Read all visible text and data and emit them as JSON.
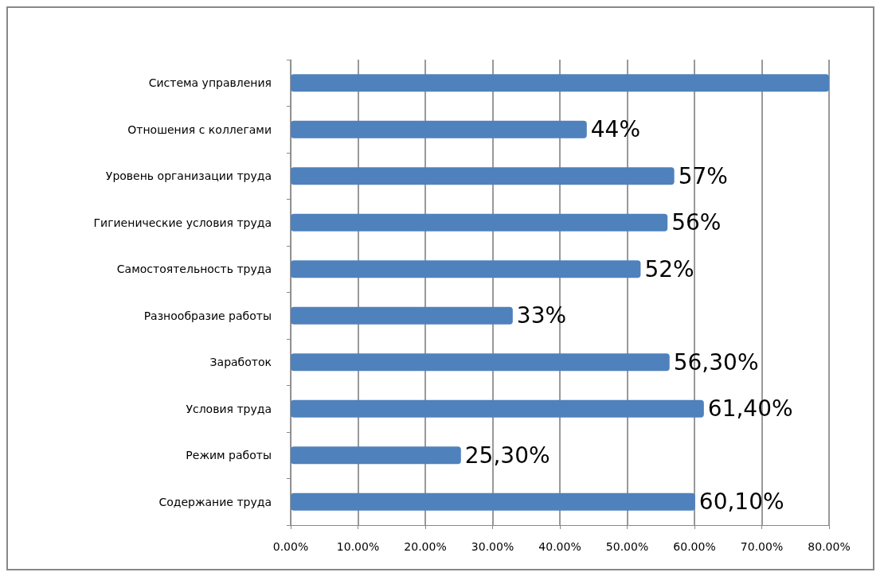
{
  "chart_data": {
    "type": "bar",
    "orientation": "horizontal",
    "categories": [
      "Система управления",
      "Отношения с коллегами",
      "Уровень организации труда",
      "Гигиенические условия труда",
      "Самостоятельность труда",
      "Разнообразие работы",
      "Заработок",
      "Условия труда",
      "Режим работы",
      "Содержание труда"
    ],
    "values": [
      80,
      44,
      57,
      56,
      52,
      33,
      56.3,
      61.4,
      25.3,
      60.1
    ],
    "value_labels": [
      null,
      "44%",
      "57%",
      "56%",
      "52%",
      "33%",
      "56,30%",
      "61,40%",
      "25,30%",
      "60,10%"
    ],
    "color": "#4f81bd",
    "xlim": [
      0,
      80
    ],
    "xticks": [
      {
        "value": 0,
        "label": "0.00%"
      },
      {
        "value": 10,
        "label": "10.00%"
      },
      {
        "value": 20,
        "label": "20.00%"
      },
      {
        "value": 30,
        "label": "30.00%"
      },
      {
        "value": 40,
        "label": "40.00%"
      },
      {
        "value": 50,
        "label": "50.00%"
      },
      {
        "value": 60,
        "label": "60.00%"
      },
      {
        "value": 70,
        "label": "70.00%"
      },
      {
        "value": 80,
        "label": "80.00%"
      }
    ],
    "grid": "x"
  }
}
